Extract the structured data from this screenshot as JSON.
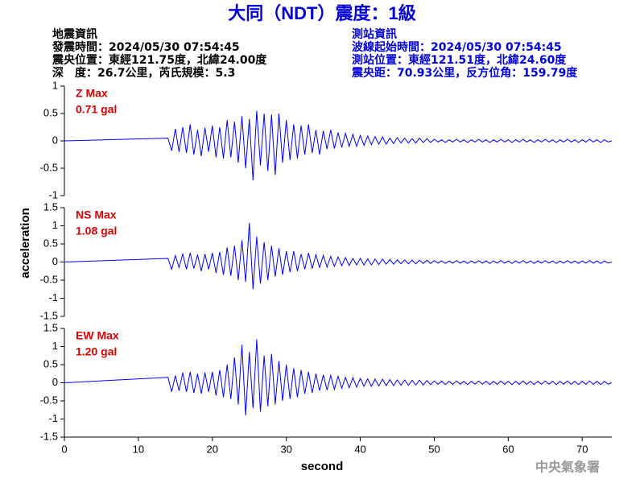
{
  "header": {
    "title": "大同（NDT）震度：1級",
    "event": [
      "地震資訊",
      "發震時間：2024/05/30 07:54:45",
      "震央位置：東經121.75度，北緯24.00度",
      "深　度：26.7公里，芮氏規模：5.3"
    ],
    "station": [
      "測站資訊",
      "波線起始時間：2024/05/30 07:54:45",
      "測站位置：東經121.51度，北緯24.60度",
      "震央距：70.93公里，反方位角：159.79度"
    ],
    "agency": "中央氣象署"
  },
  "axes": {
    "xlabel": "second",
    "ylabel": "acceleration"
  },
  "chart_data": [
    {
      "type": "line",
      "color": "#0000ff",
      "annotations": [
        "Z Max",
        "0.71 gal"
      ],
      "xlim": [
        0,
        74
      ],
      "ylim": [
        -1,
        1
      ],
      "yticks": [
        -1,
        -0.5,
        0,
        0.5,
        1
      ],
      "x": [
        0,
        14,
        14.5,
        15,
        15.5,
        16,
        16.5,
        17,
        17.5,
        18,
        18.5,
        19,
        19.5,
        20,
        20.5,
        21,
        21.5,
        22,
        22.5,
        23,
        23.5,
        24,
        24.5,
        25,
        25.5,
        26,
        26.5,
        27,
        27.5,
        28,
        28.5,
        29,
        29.5,
        30,
        30.5,
        31,
        31.5,
        32,
        32.5,
        33,
        33.5,
        34,
        34.5,
        35,
        35.5,
        36,
        36.5,
        37,
        37.5,
        38,
        38.5,
        39,
        39.5,
        40,
        40.5,
        41,
        41.5,
        42,
        42.5,
        43,
        43.5,
        44,
        44.5,
        45,
        45.5,
        46,
        46.5,
        47,
        47.5,
        48,
        48.5,
        49,
        49.5,
        50,
        50.5,
        51,
        51.5,
        52,
        52.5,
        53,
        53.5,
        54,
        54.5,
        55,
        55.5,
        56,
        56.5,
        57,
        57.5,
        58,
        58.5,
        59,
        59.5,
        60,
        60.5,
        61,
        61.5,
        62,
        62.5,
        63,
        63.5,
        64,
        64.5,
        65,
        65.5,
        66,
        66.5,
        67,
        67.5,
        68,
        68.5,
        69,
        69.5,
        70,
        70.5,
        71,
        71.5,
        72,
        72.5,
        73,
        73.5,
        74
      ],
      "values": [
        0,
        0.05,
        -0.18,
        0.22,
        -0.2,
        0.25,
        -0.22,
        0.3,
        -0.25,
        0.2,
        -0.28,
        0.24,
        -0.2,
        0.28,
        -0.3,
        0.25,
        -0.32,
        0.38,
        -0.3,
        0.35,
        -0.4,
        0.45,
        -0.5,
        0.4,
        -0.72,
        0.55,
        -0.45,
        0.5,
        -0.55,
        0.48,
        -0.62,
        0.5,
        -0.4,
        0.38,
        -0.35,
        0.3,
        -0.32,
        0.28,
        -0.25,
        0.3,
        -0.22,
        0.2,
        -0.25,
        0.18,
        -0.15,
        0.2,
        -0.14,
        0.15,
        -0.12,
        0.14,
        -0.1,
        0.12,
        -0.1,
        0.1,
        -0.08,
        0.09,
        -0.07,
        0.08,
        -0.06,
        0.07,
        -0.06,
        0.05,
        -0.05,
        0.06,
        -0.04,
        0.05,
        -0.04,
        0.04,
        -0.04,
        0.05,
        -0.03,
        0.04,
        -0.03,
        0.03,
        -0.02,
        0.02,
        -0.03,
        0.02,
        -0.02,
        0.03,
        -0.02,
        0.02,
        -0.03,
        0.02,
        -0.02,
        0.03,
        -0.02,
        0.02,
        -0.03,
        0.02,
        -0.02,
        0.03,
        -0.02,
        0.02,
        -0.03,
        0.02,
        -0.02,
        0.03,
        -0.02,
        0.02,
        -0.03,
        0.02,
        -0.02,
        0.03,
        -0.02,
        0.02,
        -0.03,
        0.02,
        -0.02,
        0.03,
        -0.02,
        0.02,
        -0.03,
        0.02,
        -0.02,
        0.03,
        -0.02,
        0.02,
        -0.03,
        0.02,
        -0.02,
        0
      ]
    },
    {
      "type": "line",
      "color": "#0000ff",
      "annotations": [
        "NS Max",
        "1.08 gal"
      ],
      "xlim": [
        0,
        74
      ],
      "ylim": [
        -1.5,
        1.5
      ],
      "yticks": [
        -1.5,
        -1,
        -0.5,
        0,
        0.5,
        1,
        1.5
      ],
      "x": [
        0,
        14,
        14.5,
        15,
        15.5,
        16,
        16.5,
        17,
        17.5,
        18,
        18.5,
        19,
        19.5,
        20,
        20.5,
        21,
        21.5,
        22,
        22.5,
        23,
        23.5,
        24,
        24.5,
        25,
        25.5,
        26,
        26.5,
        27,
        27.5,
        28,
        28.5,
        29,
        29.5,
        30,
        30.5,
        31,
        31.5,
        32,
        32.5,
        33,
        33.5,
        34,
        34.5,
        35,
        35.5,
        36,
        36.5,
        37,
        37.5,
        38,
        38.5,
        39,
        39.5,
        40,
        40.5,
        41,
        41.5,
        42,
        42.5,
        43,
        43.5,
        44,
        44.5,
        45,
        45.5,
        46,
        46.5,
        47,
        47.5,
        48,
        48.5,
        49,
        49.5,
        50,
        50.5,
        51,
        51.5,
        52,
        52.5,
        53,
        53.5,
        54,
        54.5,
        55,
        55.5,
        56,
        56.5,
        57,
        57.5,
        58,
        58.5,
        59,
        59.5,
        60,
        60.5,
        61,
        61.5,
        62,
        62.5,
        63,
        63.5,
        64,
        64.5,
        65,
        65.5,
        66,
        66.5,
        67,
        67.5,
        68,
        68.5,
        69,
        69.5,
        70,
        70.5,
        71,
        71.5,
        72,
        72.5,
        73,
        73.5,
        74
      ],
      "values": [
        0,
        0.1,
        -0.2,
        0.18,
        -0.15,
        0.22,
        -0.2,
        0.25,
        -0.18,
        0.2,
        -0.25,
        0.22,
        -0.2,
        0.25,
        -0.3,
        0.28,
        -0.35,
        0.4,
        -0.38,
        0.45,
        -0.5,
        0.6,
        -0.55,
        1.08,
        -0.75,
        0.7,
        -0.6,
        0.55,
        -0.5,
        0.45,
        -0.4,
        0.38,
        -0.35,
        0.3,
        -0.28,
        0.3,
        -0.25,
        0.22,
        -0.2,
        0.25,
        -0.18,
        0.2,
        -0.15,
        0.18,
        -0.14,
        0.15,
        -0.12,
        0.14,
        -0.1,
        0.12,
        -0.1,
        0.1,
        -0.08,
        0.1,
        -0.08,
        0.09,
        -0.08,
        0.08,
        -0.07,
        0.08,
        -0.06,
        0.07,
        -0.06,
        0.06,
        -0.05,
        0.06,
        -0.05,
        0.05,
        -0.05,
        0.05,
        -0.04,
        0.05,
        -0.04,
        0.04,
        -0.03,
        0.03,
        -0.04,
        0.03,
        -0.03,
        0.04,
        -0.03,
        0.03,
        -0.04,
        0.03,
        -0.03,
        0.04,
        -0.03,
        0.03,
        -0.04,
        0.03,
        -0.03,
        0.04,
        -0.03,
        0.03,
        -0.04,
        0.03,
        -0.03,
        0.04,
        -0.03,
        0.03,
        -0.04,
        0.03,
        -0.03,
        0.04,
        -0.03,
        0.03,
        -0.04,
        0.03,
        -0.03,
        0.04,
        -0.03,
        0.03,
        -0.04,
        0.03,
        -0.03,
        0.04,
        -0.03,
        0.03,
        -0.04,
        0.03,
        -0.03,
        0
      ]
    },
    {
      "type": "line",
      "color": "#0000ff",
      "annotations": [
        "EW Max",
        "1.20 gal"
      ],
      "xlim": [
        0,
        74
      ],
      "xticks": [
        0,
        10,
        20,
        30,
        40,
        50,
        60,
        70
      ],
      "ylim": [
        -1.5,
        1.5
      ],
      "yticks": [
        -1.5,
        -1,
        -0.5,
        0,
        0.5,
        1,
        1.5
      ],
      "x": [
        0,
        14,
        14.5,
        15,
        15.5,
        16,
        16.5,
        17,
        17.5,
        18,
        18.5,
        19,
        19.5,
        20,
        20.5,
        21,
        21.5,
        22,
        22.5,
        23,
        23.5,
        24,
        24.5,
        25,
        25.5,
        26,
        26.5,
        27,
        27.5,
        28,
        28.5,
        29,
        29.5,
        30,
        30.5,
        31,
        31.5,
        32,
        32.5,
        33,
        33.5,
        34,
        34.5,
        35,
        35.5,
        36,
        36.5,
        37,
        37.5,
        38,
        38.5,
        39,
        39.5,
        40,
        40.5,
        41,
        41.5,
        42,
        42.5,
        43,
        43.5,
        44,
        44.5,
        45,
        45.5,
        46,
        46.5,
        47,
        47.5,
        48,
        48.5,
        49,
        49.5,
        50,
        50.5,
        51,
        51.5,
        52,
        52.5,
        53,
        53.5,
        54,
        54.5,
        55,
        55.5,
        56,
        56.5,
        57,
        57.5,
        58,
        58.5,
        59,
        59.5,
        60,
        60.5,
        61,
        61.5,
        62,
        62.5,
        63,
        63.5,
        64,
        64.5,
        65,
        65.5,
        66,
        66.5,
        67,
        67.5,
        68,
        68.5,
        69,
        69.5,
        70,
        70.5,
        71,
        71.5,
        72,
        72.5,
        73,
        73.5,
        74
      ],
      "values": [
        0,
        0.15,
        -0.25,
        0.2,
        -0.22,
        0.28,
        -0.25,
        0.3,
        -0.28,
        0.25,
        -0.3,
        0.28,
        -0.25,
        0.3,
        -0.35,
        0.35,
        -0.4,
        0.5,
        -0.45,
        0.7,
        -0.6,
        1.05,
        -0.9,
        0.85,
        -0.7,
        1.2,
        -0.8,
        0.75,
        -0.65,
        0.8,
        -0.6,
        0.6,
        -0.5,
        0.5,
        -0.45,
        0.4,
        -0.4,
        0.35,
        -0.3,
        0.3,
        -0.28,
        0.25,
        -0.22,
        0.22,
        -0.2,
        0.2,
        -0.18,
        0.18,
        -0.15,
        0.15,
        -0.14,
        0.14,
        -0.12,
        0.12,
        -0.1,
        0.11,
        -0.1,
        0.1,
        -0.09,
        0.1,
        -0.08,
        0.09,
        -0.08,
        0.08,
        -0.07,
        0.08,
        -0.07,
        0.07,
        -0.06,
        0.07,
        -0.06,
        0.06,
        -0.05,
        0.05,
        -0.04,
        0.04,
        -0.05,
        0.04,
        -0.04,
        0.05,
        -0.04,
        0.04,
        -0.05,
        0.04,
        -0.04,
        0.05,
        -0.04,
        0.04,
        -0.05,
        0.04,
        -0.04,
        0.05,
        -0.04,
        0.04,
        -0.05,
        0.04,
        -0.04,
        0.05,
        -0.04,
        0.04,
        -0.05,
        0.04,
        -0.04,
        0.05,
        -0.04,
        0.04,
        -0.05,
        0.04,
        -0.04,
        0.05,
        -0.04,
        0.04,
        -0.05,
        0.04,
        -0.04,
        0.05,
        -0.04,
        0.04,
        -0.05,
        0.04,
        -0.04,
        0
      ]
    }
  ]
}
